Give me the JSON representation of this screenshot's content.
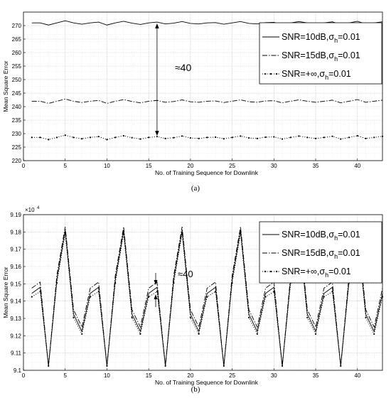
{
  "chart_data": [
    {
      "type": "line",
      "caption": "(a)",
      "xlabel": "No. of Training Sequence for Downlink",
      "ylabel": "Mean Square Error",
      "xlim": [
        0,
        43
      ],
      "ylim": [
        220,
        275
      ],
      "xticks": [
        0,
        5,
        10,
        15,
        20,
        25,
        30,
        35,
        40
      ],
      "yticks": [
        220,
        225,
        230,
        235,
        240,
        245,
        250,
        255,
        260,
        265,
        270
      ],
      "grid": true,
      "legend_position": "right",
      "annotation": "≈40",
      "series": [
        {
          "name": "SNR=10dB,σh=0.01",
          "legend_main": "SNR=10dB,σ",
          "legend_sub": "h",
          "legend_tail": "=0.01",
          "x": [
            1,
            2,
            3,
            4,
            5,
            6,
            7,
            8,
            9,
            10,
            11,
            12,
            13,
            14,
            15,
            16,
            17,
            18,
            19,
            20,
            21,
            22,
            23,
            24,
            25,
            26,
            27,
            28,
            29,
            30,
            31,
            32,
            33,
            34,
            35,
            36,
            37,
            38,
            39,
            40,
            41,
            42,
            43
          ],
          "y": [
            271.0,
            271.0,
            270.2,
            271.0,
            271.8,
            271.0,
            270.5,
            271.0,
            271.3,
            270.2,
            271.0,
            271.6,
            270.9,
            270.4,
            271.0,
            271.3,
            270.6,
            270.9,
            271.5,
            270.8,
            270.6,
            271.0,
            271.1,
            270.5,
            271.0,
            271.5,
            270.8,
            270.6,
            271.1,
            271.2,
            270.4,
            271.0,
            271.5,
            271.0,
            270.6,
            271.0,
            271.4,
            270.4,
            271.0,
            271.6,
            270.6,
            271.0,
            271.4
          ]
        },
        {
          "name": "SNR=15dB,σh=0.01",
          "legend_main": "SNR=15dB,σ",
          "legend_sub": "h",
          "legend_tail": "=0.01",
          "x": [
            1,
            2,
            3,
            4,
            5,
            6,
            7,
            8,
            9,
            10,
            11,
            12,
            13,
            14,
            15,
            16,
            17,
            18,
            19,
            20,
            21,
            22,
            23,
            24,
            25,
            26,
            27,
            28,
            29,
            30,
            31,
            32,
            33,
            34,
            35,
            36,
            37,
            38,
            39,
            40,
            41,
            42,
            43
          ],
          "y": [
            242.0,
            242.0,
            241.2,
            242.0,
            242.8,
            242.0,
            241.5,
            242.0,
            242.3,
            241.2,
            242.0,
            242.6,
            241.9,
            241.4,
            242.0,
            242.3,
            241.6,
            241.9,
            242.5,
            241.8,
            241.6,
            242.0,
            242.1,
            241.5,
            242.0,
            242.5,
            241.8,
            241.6,
            242.1,
            242.2,
            241.4,
            242.0,
            242.5,
            242.0,
            241.6,
            242.0,
            242.4,
            241.4,
            242.0,
            242.6,
            241.6,
            242.0,
            242.4
          ]
        },
        {
          "name": "SNR=+∞,σh=0.01",
          "legend_main": "SNR=+∞,σ",
          "legend_sub": "h",
          "legend_tail": "=0.01",
          "x": [
            1,
            2,
            3,
            4,
            5,
            6,
            7,
            8,
            9,
            10,
            11,
            12,
            13,
            14,
            15,
            16,
            17,
            18,
            19,
            20,
            21,
            22,
            23,
            24,
            25,
            26,
            27,
            28,
            29,
            30,
            31,
            32,
            33,
            34,
            35,
            36,
            37,
            38,
            39,
            40,
            41,
            42,
            43
          ],
          "y": [
            228.6,
            228.6,
            227.8,
            228.6,
            229.4,
            228.6,
            228.1,
            228.6,
            228.9,
            227.8,
            228.6,
            229.2,
            228.5,
            228.0,
            228.6,
            228.9,
            228.2,
            228.5,
            229.1,
            228.4,
            228.2,
            228.6,
            228.7,
            228.1,
            228.6,
            229.1,
            228.4,
            228.2,
            228.7,
            228.8,
            228.0,
            228.6,
            229.1,
            228.6,
            228.2,
            228.6,
            229.0,
            228.0,
            228.6,
            229.2,
            228.2,
            228.6,
            229.0
          ]
        }
      ]
    },
    {
      "type": "line",
      "caption": "(b)",
      "xlabel": "No. of Training Sequence for Downlink",
      "ylabel": "Mean Square Error",
      "y_multiplier": "×10",
      "y_multiplier_exp": "4",
      "xlim": [
        0,
        43
      ],
      "ylim": [
        9.1,
        9.19
      ],
      "xticks": [
        0,
        5,
        10,
        15,
        20,
        25,
        30,
        35,
        40
      ],
      "yticks": [
        "9.1",
        "9.11",
        "9.12",
        "9.13",
        "9.14",
        "9.15",
        "9.16",
        "9.17",
        "9.18",
        "9.19"
      ],
      "grid": true,
      "legend_position": "top-right",
      "annotation": "≈40",
      "series": [
        {
          "name": "SNR=10dB,σh=0.01",
          "legend_main": "SNR=10dB,σ",
          "legend_sub": "h",
          "legend_tail": "=0.01",
          "x": [
            1,
            2,
            3,
            4,
            5,
            6,
            7,
            8,
            9,
            10,
            11,
            12,
            13,
            14,
            15,
            16,
            17,
            18,
            19,
            20,
            21,
            22,
            23,
            24,
            25,
            26,
            27,
            28,
            29,
            30,
            31,
            32,
            33,
            34,
            35,
            36,
            37,
            38,
            39,
            40,
            41,
            42,
            43
          ],
          "y": [
            9.1445,
            9.148,
            9.1025,
            9.1525,
            9.181,
            9.1325,
            9.1225,
            9.1445,
            9.148,
            9.1025,
            9.1525,
            9.181,
            9.1325,
            9.1225,
            9.1445,
            9.148,
            9.1025,
            9.1525,
            9.181,
            9.1325,
            9.1225,
            9.1445,
            9.148,
            9.1025,
            9.1525,
            9.181,
            9.1325,
            9.1225,
            9.1445,
            9.148,
            9.1025,
            9.1525,
            9.181,
            9.1325,
            9.1225,
            9.1445,
            9.148,
            9.1025,
            9.1525,
            9.181,
            9.1325,
            9.1225,
            9.1445
          ]
        },
        {
          "name": "SNR=15dB,σh=0.01",
          "legend_main": "SNR=15dB,σ",
          "legend_sub": "h",
          "legend_tail": "=0.01",
          "x": [
            1,
            2,
            3,
            4,
            5,
            6,
            7,
            8,
            9,
            10,
            11,
            12,
            13,
            14,
            15,
            16,
            17,
            18,
            19,
            20,
            21,
            22,
            23,
            24,
            25,
            26,
            27,
            28,
            29,
            30,
            31,
            32,
            33,
            34,
            35,
            36,
            37,
            38,
            39,
            40,
            41,
            42,
            43
          ],
          "y": [
            9.1475,
            9.151,
            9.1025,
            9.155,
            9.183,
            9.135,
            9.125,
            9.1475,
            9.151,
            9.1025,
            9.155,
            9.183,
            9.135,
            9.125,
            9.1475,
            9.151,
            9.1025,
            9.155,
            9.183,
            9.135,
            9.125,
            9.1475,
            9.151,
            9.1025,
            9.155,
            9.183,
            9.135,
            9.125,
            9.1475,
            9.151,
            9.1025,
            9.155,
            9.183,
            9.135,
            9.125,
            9.1475,
            9.151,
            9.1025,
            9.155,
            9.183,
            9.135,
            9.125,
            9.1475
          ]
        },
        {
          "name": "SNR=+∞,σh=0.01",
          "legend_main": "SNR=+∞,σ",
          "legend_sub": "h",
          "legend_tail": "=0.01",
          "x": [
            1,
            2,
            3,
            4,
            5,
            6,
            7,
            8,
            9,
            10,
            11,
            12,
            13,
            14,
            15,
            16,
            17,
            18,
            19,
            20,
            21,
            22,
            23,
            24,
            25,
            26,
            27,
            28,
            29,
            30,
            31,
            32,
            33,
            34,
            35,
            36,
            37,
            38,
            39,
            40,
            41,
            42,
            43
          ],
          "y": [
            9.1425,
            9.1455,
            9.1025,
            9.1505,
            9.179,
            9.1305,
            9.121,
            9.1425,
            9.1455,
            9.1025,
            9.1505,
            9.179,
            9.1305,
            9.121,
            9.1425,
            9.1455,
            9.1025,
            9.1505,
            9.179,
            9.1305,
            9.121,
            9.1425,
            9.1455,
            9.1025,
            9.1505,
            9.179,
            9.1305,
            9.121,
            9.1425,
            9.1455,
            9.1025,
            9.1505,
            9.179,
            9.1305,
            9.121,
            9.1425,
            9.1455,
            9.1025,
            9.1505,
            9.179,
            9.1305,
            9.121,
            9.1425
          ]
        }
      ]
    }
  ]
}
